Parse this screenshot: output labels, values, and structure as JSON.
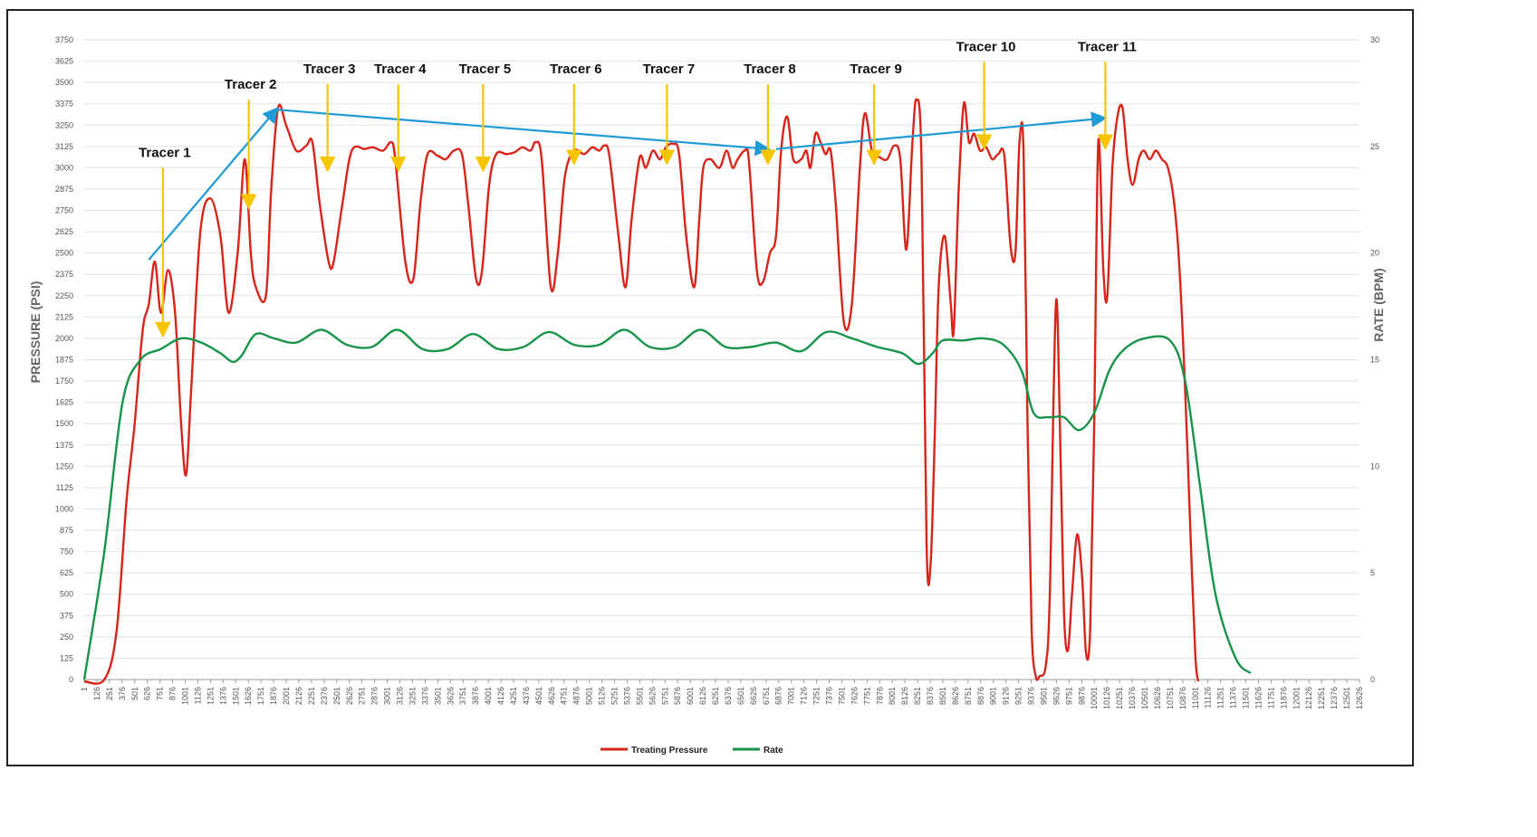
{
  "chart_data": {
    "type": "line",
    "x_ticks": [
      "1",
      "126",
      "251",
      "376",
      "501",
      "626",
      "751",
      "876",
      "1001",
      "1126",
      "1251",
      "1376",
      "1501",
      "1626",
      "1751",
      "1876",
      "2001",
      "2126",
      "2251",
      "2376",
      "2501",
      "2626",
      "2751",
      "2876",
      "3001",
      "3126",
      "3251",
      "3376",
      "3501",
      "3626",
      "3751",
      "3876",
      "4001",
      "4126",
      "4251",
      "4376",
      "4501",
      "4626",
      "4751",
      "4876",
      "5001",
      "5126",
      "5251",
      "5376",
      "5501",
      "5626",
      "5751",
      "5876",
      "6001",
      "6126",
      "6251",
      "6376",
      "6501",
      "6626",
      "6751",
      "6876",
      "7001",
      "7126",
      "7251",
      "7376",
      "7501",
      "7626",
      "7751",
      "7876",
      "8001",
      "8126",
      "8251",
      "8376",
      "8501",
      "8626",
      "8751",
      "8876",
      "9001",
      "9126",
      "9251",
      "9376",
      "9501",
      "9626",
      "9751",
      "9876",
      "10001",
      "10126",
      "10251",
      "10376",
      "10501",
      "10626",
      "10751",
      "10876",
      "11001",
      "11126",
      "11251",
      "11376",
      "11501",
      "11626",
      "11751",
      "11876",
      "12001",
      "12126",
      "12251",
      "12376",
      "12501",
      "12626"
    ],
    "y_left": {
      "label": "PRESSURE (PSI)",
      "ticks": [
        "0",
        "125",
        "250",
        "375",
        "500",
        "625",
        "750",
        "875",
        "1000",
        "1125",
        "1250",
        "1375",
        "1500",
        "1625",
        "1750",
        "1875",
        "2000",
        "2125",
        "2250",
        "2375",
        "2500",
        "2625",
        "2750",
        "2875",
        "3000",
        "3125",
        "3250",
        "3375",
        "3500",
        "3625",
        "3750"
      ],
      "ylim": [
        0,
        3750
      ]
    },
    "y_right": {
      "label": "RATE (BPM)",
      "ticks": [
        "0",
        "5",
        "10",
        "15",
        "20",
        "25",
        "30"
      ],
      "ylim": [
        0,
        30
      ]
    },
    "xlim": [
      1,
      12626
    ],
    "grid": true,
    "legend_position": "bottom-center",
    "series": [
      {
        "name": "Treating Pressure",
        "axis": "left",
        "color": "#d9241c",
        "points": [
          [
            1,
            -100
          ],
          [
            200,
            0
          ],
          [
            320,
            280
          ],
          [
            420,
            1050
          ],
          [
            500,
            1500
          ],
          [
            580,
            2050
          ],
          [
            640,
            2200
          ],
          [
            700,
            2450
          ],
          [
            760,
            2150
          ],
          [
            830,
            2400
          ],
          [
            900,
            2150
          ],
          [
            960,
            1500
          ],
          [
            1010,
            1200
          ],
          [
            1060,
            1700
          ],
          [
            1150,
            2620
          ],
          [
            1250,
            2820
          ],
          [
            1350,
            2600
          ],
          [
            1430,
            2150
          ],
          [
            1520,
            2500
          ],
          [
            1590,
            3050
          ],
          [
            1650,
            2500
          ],
          [
            1700,
            2300
          ],
          [
            1800,
            2250
          ],
          [
            1850,
            2850
          ],
          [
            1920,
            3350
          ],
          [
            2000,
            3250
          ],
          [
            2100,
            3100
          ],
          [
            2200,
            3130
          ],
          [
            2260,
            3150
          ],
          [
            2330,
            2800
          ],
          [
            2420,
            2450
          ],
          [
            2470,
            2450
          ],
          [
            2560,
            2800
          ],
          [
            2650,
            3100
          ],
          [
            2780,
            3110
          ],
          [
            2860,
            3120
          ],
          [
            2960,
            3100
          ],
          [
            3040,
            3150
          ],
          [
            3080,
            3050
          ],
          [
            3180,
            2450
          ],
          [
            3260,
            2350
          ],
          [
            3330,
            2800
          ],
          [
            3400,
            3080
          ],
          [
            3500,
            3070
          ],
          [
            3580,
            3050
          ],
          [
            3660,
            3100
          ],
          [
            3740,
            3080
          ],
          [
            3800,
            2800
          ],
          [
            3880,
            2350
          ],
          [
            3940,
            2400
          ],
          [
            4010,
            2900
          ],
          [
            4080,
            3080
          ],
          [
            4180,
            3080
          ],
          [
            4260,
            3090
          ],
          [
            4340,
            3120
          ],
          [
            4420,
            3100
          ],
          [
            4470,
            3150
          ],
          [
            4530,
            3050
          ],
          [
            4620,
            2300
          ],
          [
            4690,
            2500
          ],
          [
            4760,
            2950
          ],
          [
            4850,
            3100
          ],
          [
            4950,
            3080
          ],
          [
            5030,
            3120
          ],
          [
            5100,
            3100
          ],
          [
            5150,
            3130
          ],
          [
            5200,
            3070
          ],
          [
            5290,
            2600
          ],
          [
            5360,
            2300
          ],
          [
            5420,
            2700
          ],
          [
            5500,
            3060
          ],
          [
            5560,
            3000
          ],
          [
            5630,
            3100
          ],
          [
            5700,
            3050
          ],
          [
            5760,
            3120
          ],
          [
            5830,
            3140
          ],
          [
            5890,
            3080
          ],
          [
            5960,
            2600
          ],
          [
            6040,
            2300
          ],
          [
            6090,
            2700
          ],
          [
            6130,
            3000
          ],
          [
            6200,
            3050
          ],
          [
            6290,
            3000
          ],
          [
            6360,
            3100
          ],
          [
            6420,
            3000
          ],
          [
            6470,
            3050
          ],
          [
            6540,
            3100
          ],
          [
            6580,
            3050
          ],
          [
            6660,
            2400
          ],
          [
            6720,
            2330
          ],
          [
            6790,
            2500
          ],
          [
            6850,
            2600
          ],
          [
            6900,
            3100
          ],
          [
            6960,
            3300
          ],
          [
            7020,
            3050
          ],
          [
            7100,
            3050
          ],
          [
            7150,
            3100
          ],
          [
            7190,
            3000
          ],
          [
            7240,
            3200
          ],
          [
            7290,
            3150
          ],
          [
            7340,
            3080
          ],
          [
            7390,
            3100
          ],
          [
            7440,
            2800
          ],
          [
            7520,
            2100
          ],
          [
            7600,
            2200
          ],
          [
            7680,
            3000
          ],
          [
            7730,
            3320
          ],
          [
            7800,
            3100
          ],
          [
            7880,
            3060
          ],
          [
            7950,
            3050
          ],
          [
            8020,
            3130
          ],
          [
            8080,
            3050
          ],
          [
            8140,
            2520
          ],
          [
            8200,
            3150
          ],
          [
            8240,
            3400
          ],
          [
            8290,
            3050
          ],
          [
            8340,
            800
          ],
          [
            8380,
            680
          ],
          [
            8420,
            1400
          ],
          [
            8460,
            2300
          ],
          [
            8520,
            2600
          ],
          [
            8580,
            2200
          ],
          [
            8610,
            2050
          ],
          [
            8660,
            2900
          ],
          [
            8710,
            3380
          ],
          [
            8760,
            3150
          ],
          [
            8810,
            3200
          ],
          [
            8870,
            3100
          ],
          [
            8930,
            3120
          ],
          [
            8990,
            3050
          ],
          [
            9050,
            3080
          ],
          [
            9110,
            3070
          ],
          [
            9170,
            2550
          ],
          [
            9220,
            2500
          ],
          [
            9260,
            3150
          ],
          [
            9300,
            3100
          ],
          [
            9340,
            1500
          ],
          [
            9380,
            300
          ],
          [
            9420,
            20
          ],
          [
            9460,
            20
          ],
          [
            9520,
            80
          ],
          [
            9560,
            500
          ],
          [
            9620,
            2200
          ],
          [
            9660,
            1500
          ],
          [
            9700,
            400
          ],
          [
            9740,
            170
          ],
          [
            9780,
            500
          ],
          [
            9830,
            850
          ],
          [
            9880,
            600
          ],
          [
            9920,
            150
          ],
          [
            9960,
            300
          ],
          [
            10000,
            1500
          ],
          [
            10040,
            3150
          ],
          [
            10090,
            2400
          ],
          [
            10130,
            2250
          ],
          [
            10180,
            3000
          ],
          [
            10230,
            3300
          ],
          [
            10280,
            3350
          ],
          [
            10330,
            3050
          ],
          [
            10380,
            2900
          ],
          [
            10440,
            3050
          ],
          [
            10490,
            3100
          ],
          [
            10550,
            3050
          ],
          [
            10610,
            3100
          ],
          [
            10670,
            3050
          ],
          [
            10730,
            3000
          ],
          [
            10790,
            2800
          ],
          [
            10840,
            2450
          ],
          [
            10900,
            1700
          ],
          [
            10950,
            900
          ],
          [
            11000,
            150
          ],
          [
            11030,
            -50
          ]
        ]
      },
      {
        "name": "Rate",
        "axis": "right",
        "color": "#17934a",
        "points": [
          [
            1,
            0
          ],
          [
            200,
            6
          ],
          [
            380,
            13
          ],
          [
            560,
            15
          ],
          [
            760,
            15.5
          ],
          [
            960,
            16
          ],
          [
            1160,
            15.8
          ],
          [
            1350,
            15.3
          ],
          [
            1470,
            14.9
          ],
          [
            1560,
            15.2
          ],
          [
            1700,
            16.2
          ],
          [
            1880,
            16
          ],
          [
            2100,
            15.8
          ],
          [
            2350,
            16.4
          ],
          [
            2600,
            15.7
          ],
          [
            2850,
            15.6
          ],
          [
            3100,
            16.4
          ],
          [
            3350,
            15.5
          ],
          [
            3600,
            15.5
          ],
          [
            3850,
            16.2
          ],
          [
            4100,
            15.5
          ],
          [
            4350,
            15.6
          ],
          [
            4600,
            16.3
          ],
          [
            4850,
            15.7
          ],
          [
            5100,
            15.7
          ],
          [
            5350,
            16.4
          ],
          [
            5600,
            15.6
          ],
          [
            5850,
            15.6
          ],
          [
            6100,
            16.4
          ],
          [
            6350,
            15.6
          ],
          [
            6600,
            15.6
          ],
          [
            6850,
            15.8
          ],
          [
            7100,
            15.4
          ],
          [
            7350,
            16.3
          ],
          [
            7600,
            16
          ],
          [
            7850,
            15.6
          ],
          [
            8100,
            15.3
          ],
          [
            8260,
            14.8
          ],
          [
            8400,
            15.3
          ],
          [
            8500,
            15.9
          ],
          [
            8700,
            15.9
          ],
          [
            8900,
            16
          ],
          [
            9100,
            15.7
          ],
          [
            9280,
            14.5
          ],
          [
            9400,
            12.5
          ],
          [
            9550,
            12.3
          ],
          [
            9700,
            12.3
          ],
          [
            9850,
            11.7
          ],
          [
            10000,
            12.5
          ],
          [
            10150,
            14.5
          ],
          [
            10300,
            15.5
          ],
          [
            10500,
            16
          ],
          [
            10750,
            15.9
          ],
          [
            10900,
            14
          ],
          [
            11050,
            9
          ],
          [
            11200,
            4
          ],
          [
            11400,
            1
          ],
          [
            11550,
            0.3
          ]
        ]
      }
    ],
    "annotations": {
      "tracers": [
        {
          "label": "Tracer 1",
          "x": 780,
          "y_top": 3000,
          "y_bottom": 2050
        },
        {
          "label": "Tracer 2",
          "x": 1630,
          "y_top": 3400,
          "y_bottom": 2800
        },
        {
          "label": "Tracer 3",
          "x": 2410,
          "y_top": 3490,
          "y_bottom": 3020
        },
        {
          "label": "Tracer 4",
          "x": 3110,
          "y_top": 3490,
          "y_bottom": 3020
        },
        {
          "label": "Tracer 5",
          "x": 3950,
          "y_top": 3490,
          "y_bottom": 3020
        },
        {
          "label": "Tracer 6",
          "x": 4850,
          "y_top": 3490,
          "y_bottom": 3060
        },
        {
          "label": "Tracer 7",
          "x": 5770,
          "y_top": 3490,
          "y_bottom": 3060
        },
        {
          "label": "Tracer 8",
          "x": 6770,
          "y_top": 3490,
          "y_bottom": 3060
        },
        {
          "label": "Tracer 9",
          "x": 7820,
          "y_top": 3490,
          "y_bottom": 3060
        },
        {
          "label": "Tracer 10",
          "x": 8910,
          "y_top": 3620,
          "y_bottom": 3150
        },
        {
          "label": "Tracer 11",
          "x": 10110,
          "y_top": 3620,
          "y_bottom": 3150
        }
      ],
      "trend_lines": [
        {
          "from": [
            640,
            2460
          ],
          "to": [
            1900,
            3340
          ]
        },
        {
          "from": [
            1920,
            3340
          ],
          "to": [
            6760,
            3110
          ]
        },
        {
          "from": [
            6850,
            3110
          ],
          "to": [
            10090,
            3290
          ]
        }
      ]
    },
    "colors": {
      "pressure": "#d9241c",
      "rate": "#17934a",
      "tracer_arrow": "#f7c400",
      "trend_arrow": "#1e9ad6",
      "grid": "#e2e2e2"
    }
  }
}
